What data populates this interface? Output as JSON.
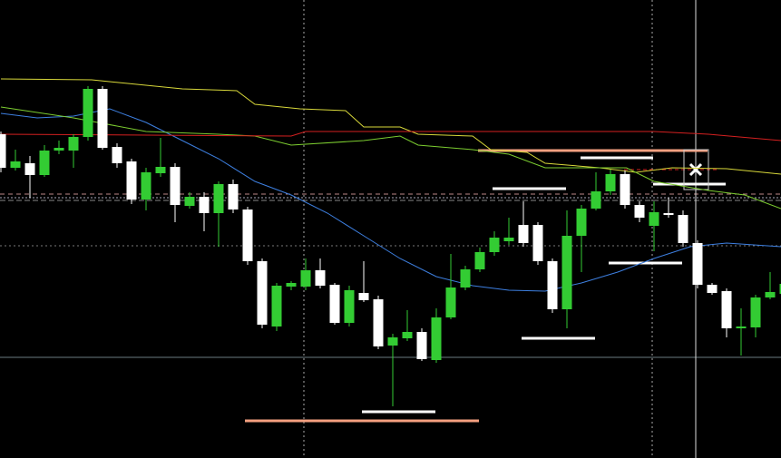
{
  "chart_data": {
    "type": "candlestick",
    "xlim": [
      -0.0625,
      53.75
    ],
    "ylim": [
      0,
      505
    ],
    "up_color": "#33cc33",
    "down_color": "#ffffff",
    "open": [
      357,
      320,
      325,
      312,
      339,
      339,
      354,
      407,
      343,
      327,
      285,
      314,
      321,
      278,
      288,
      270,
      302,
      274,
      217,
      145,
      189,
      189,
      207,
      191,
      149,
      182,
      175,
      124,
      132,
      139,
      108,
      155,
      188,
      208,
      227,
      239,
      257,
      257,
      217,
      164,
      245,
      275,
      294,
      313,
      279,
      256,
      270,
      268,
      237,
      191,
      184,
      143,
      144,
      177,
      181
    ],
    "high": [
      360,
      340,
      333,
      345,
      350,
      357,
      410,
      410,
      347,
      330,
      320,
      353,
      325,
      293,
      293,
      305,
      307,
      277,
      220,
      193,
      195,
      220,
      220,
      193,
      190,
      217,
      179,
      137,
      163,
      143,
      165,
      225,
      212,
      232,
      250,
      265,
      283,
      260,
      220,
      273,
      279,
      315,
      318,
      317,
      283,
      283,
      287,
      273,
      240,
      193,
      187,
      165,
      180,
      205,
      195
    ],
    "low": [
      315,
      317,
      287,
      310,
      335,
      320,
      350,
      340,
      320,
      280,
      273,
      310,
      260,
      275,
      250,
      233,
      270,
      213,
      143,
      140,
      185,
      185,
      187,
      147,
      145,
      172,
      120,
      57,
      129,
      107,
      105,
      153,
      185,
      205,
      223,
      235,
      233,
      213,
      160,
      143,
      205,
      273,
      290,
      275,
      260,
      228,
      265,
      233,
      187,
      180,
      133,
      113,
      133,
      175,
      178
    ],
    "close": [
      320,
      327,
      312,
      339,
      342,
      354,
      407,
      342,
      325,
      285,
      315,
      321,
      279,
      288,
      270,
      302,
      274,
      217,
      147,
      190,
      193,
      207,
      190,
      149,
      185,
      174,
      123,
      133,
      139,
      109,
      155,
      188,
      208,
      227,
      243,
      243,
      237,
      217,
      164,
      245,
      275,
      294,
      313,
      279,
      265,
      271,
      268,
      237,
      191,
      182,
      143,
      145,
      177,
      183,
      192
    ],
    "lines": [
      {
        "color": "#3d7fe0",
        "x": [
          0,
          2.5,
          5,
          7.5,
          10,
          12.5,
          15,
          17.5,
          20,
          22.5,
          25,
          27.5,
          30,
          32.5,
          35,
          37.5,
          40,
          42.5,
          45,
          47.5,
          50,
          53.75
        ],
        "values": [
          380,
          375,
          377,
          385,
          370,
          350,
          330,
          305,
          290,
          270,
          245,
          220,
          200,
          190,
          185,
          184,
          193,
          205,
          220,
          233,
          237,
          233
        ]
      },
      {
        "color": "#d8d83a",
        "x": [
          0,
          6.25,
          12.5,
          16.25,
          17.5,
          20.6,
          23.75,
          25,
          27.5,
          28.75,
          32.5,
          33.75,
          36.25,
          37.5,
          41.25,
          43.75,
          46.25,
          50,
          53.75
        ],
        "values": [
          418,
          417,
          407,
          405,
          390,
          385,
          383,
          365,
          365,
          357,
          355,
          340,
          337,
          325,
          320,
          315,
          320,
          319,
          313
        ]
      },
      {
        "color": "#7ccd30",
        "x": [
          0,
          5,
          10,
          15,
          17.5,
          20,
          25,
          27.5,
          28.75,
          32.5,
          35,
          37.5,
          43.1,
          45,
          48.75,
          51.25,
          53.75
        ],
        "values": [
          387,
          375,
          360,
          357,
          355,
          345,
          350,
          355,
          345,
          340,
          335,
          320,
          320,
          305,
          295,
          290,
          275
        ]
      },
      {
        "color": "#d42020",
        "x": [
          0,
          20,
          21,
          45,
          48.75,
          53.75
        ],
        "values": [
          357,
          355,
          360,
          360,
          357,
          350
        ]
      }
    ]
  }
}
